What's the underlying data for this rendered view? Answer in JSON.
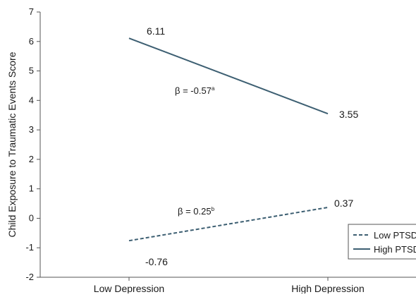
{
  "chart_data": {
    "type": "line",
    "categories": [
      "Low Depression",
      "High Depression"
    ],
    "ylabel": "Child Exposure to Traumatic Events Score",
    "ylim": [
      -2,
      7
    ],
    "yticks": [
      "-2",
      "-1",
      "0",
      "1",
      "2",
      "3",
      "4",
      "5",
      "6",
      "7"
    ],
    "grid": false,
    "legend_position": "bottom-right",
    "series": [
      {
        "name": "High PTSD",
        "style": "solid",
        "color": "#3d5f72",
        "values": [
          6.11,
          3.55
        ],
        "value_labels": [
          "6.11",
          "3.55"
        ],
        "beta_label": "β = -0.57",
        "beta_superscript": "a"
      },
      {
        "name": "Low PTSD",
        "style": "dashed",
        "color": "#3d5f72",
        "values": [
          -0.76,
          0.37
        ],
        "value_labels": [
          "-0.76",
          "0.37"
        ],
        "beta_label": "β = 0.25",
        "beta_superscript": "b"
      }
    ]
  }
}
